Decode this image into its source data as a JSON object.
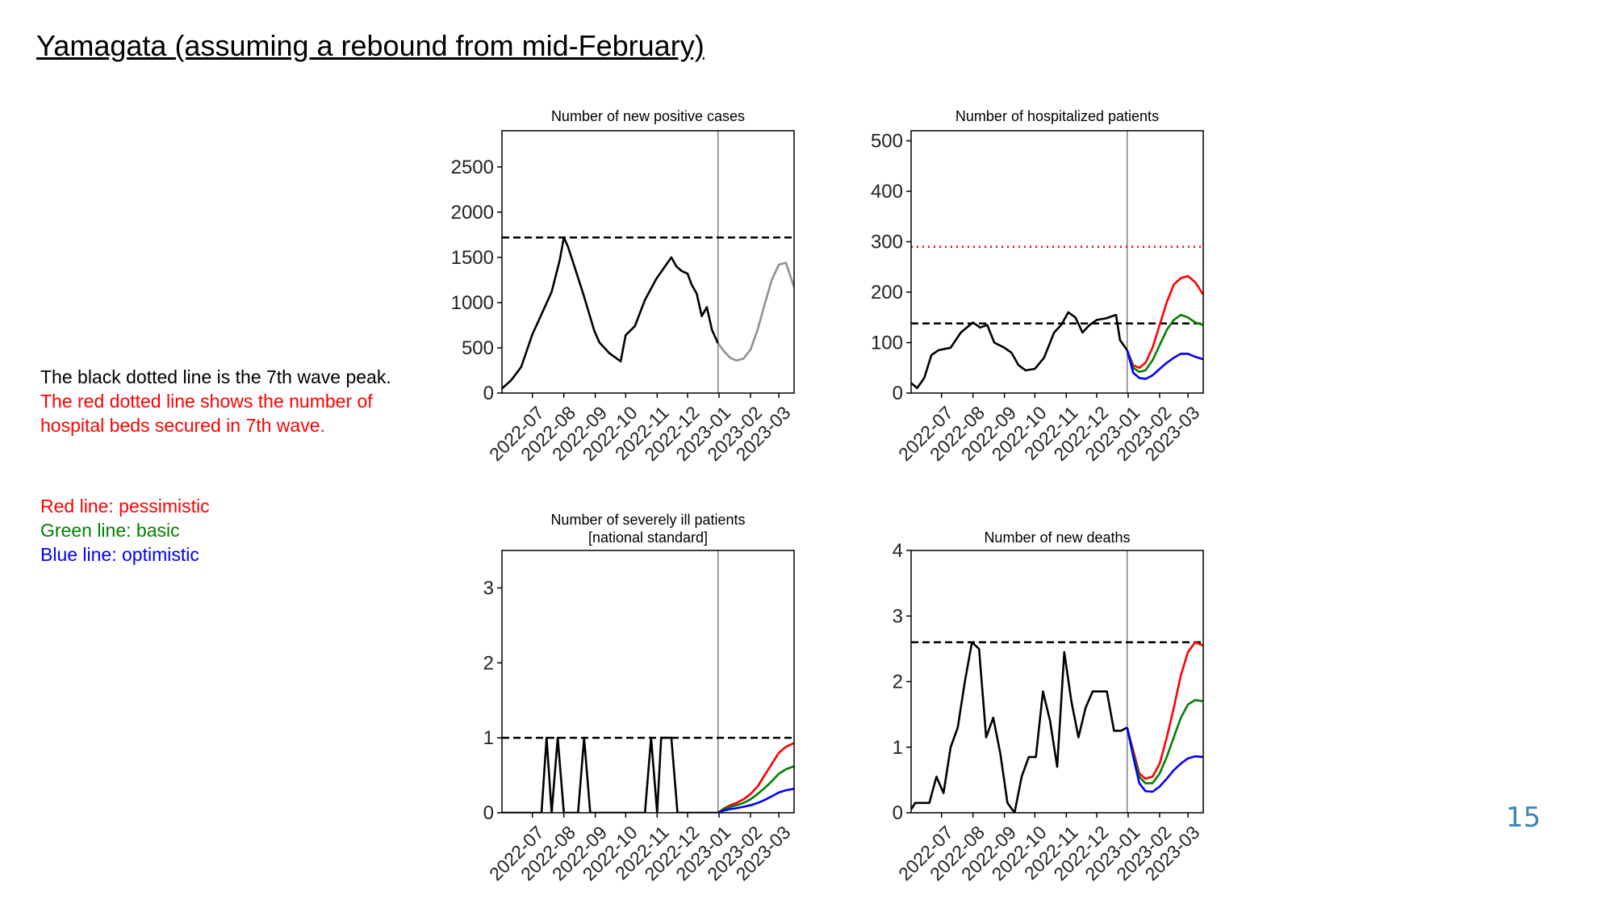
{
  "slide": {
    "title": "Yamagata (assuming a rebound from mid-February)",
    "page_number": "15"
  },
  "notes": {
    "black_line": "The black dotted line is the 7th wave peak.",
    "red_line_1": "The red dotted line shows the number of",
    "red_line_2": "hospital beds secured in 7th wave.",
    "pessimistic": "Red line: pessimistic",
    "basic": "Green line: basic",
    "optimistic": "Blue line: optimistic"
  },
  "colors": {
    "actual": "#000000",
    "projection": "#909090",
    "pessimistic": "#ff0000",
    "basic": "#008000",
    "optimistic": "#0000ff",
    "divider": "#808080",
    "note_red": "#ff0000",
    "note_green": "#008000",
    "note_blue": "#0000ff",
    "page_number": "#3a86b4"
  },
  "chart_data": [
    {
      "type": "line",
      "title": "Number of new positive cases",
      "xlim": [
        "2022-06-01",
        "2023-03-16"
      ],
      "ylim": [
        0,
        2900
      ],
      "yticks": [
        0,
        500,
        1000,
        1500,
        2000,
        2500
      ],
      "xticks": [
        "2022-07",
        "2022-08",
        "2022-09",
        "2022-10",
        "2022-11",
        "2022-12",
        "2023-01",
        "2023-02",
        "2023-03"
      ],
      "reference_lines": [
        {
          "label": "7th wave peak",
          "value": 1720,
          "style": "dashed",
          "color": "black"
        }
      ],
      "divider_date": "2022-12-31",
      "series": [
        {
          "role": "actual",
          "x": [
            "2022-06-01",
            "2022-06-10",
            "2022-06-20",
            "2022-07-01",
            "2022-07-10",
            "2022-07-20",
            "2022-07-28",
            "2022-08-01",
            "2022-08-05",
            "2022-08-10",
            "2022-08-20",
            "2022-08-31",
            "2022-09-05",
            "2022-09-10",
            "2022-09-15",
            "2022-09-20",
            "2022-09-26",
            "2022-10-01",
            "2022-10-10",
            "2022-10-20",
            "2022-10-31",
            "2022-11-10",
            "2022-11-15",
            "2022-11-20",
            "2022-11-25",
            "2022-12-01",
            "2022-12-05",
            "2022-12-10",
            "2022-12-15",
            "2022-12-20",
            "2022-12-25",
            "2022-12-31"
          ],
          "y": [
            50,
            140,
            290,
            650,
            870,
            1120,
            1470,
            1720,
            1620,
            1450,
            1100,
            690,
            560,
            500,
            440,
            400,
            350,
            640,
            740,
            1030,
            1260,
            1420,
            1500,
            1400,
            1350,
            1320,
            1200,
            1100,
            850,
            950,
            700,
            550
          ]
        },
        {
          "role": "projection",
          "x": [
            "2022-12-31",
            "2023-01-06",
            "2023-01-12",
            "2023-01-18",
            "2023-01-25",
            "2023-02-01",
            "2023-02-08",
            "2023-02-15",
            "2023-02-22",
            "2023-03-01",
            "2023-03-08",
            "2023-03-16"
          ],
          "y": [
            550,
            460,
            390,
            360,
            380,
            480,
            700,
            980,
            1250,
            1420,
            1440,
            1170
          ]
        }
      ]
    },
    {
      "type": "line",
      "title": "Number of hospitalized patients",
      "xlim": [
        "2022-06-01",
        "2023-03-16"
      ],
      "ylim": [
        0,
        520
      ],
      "yticks": [
        0,
        100,
        200,
        300,
        400,
        500
      ],
      "xticks": [
        "2022-07",
        "2022-08",
        "2022-09",
        "2022-10",
        "2022-11",
        "2022-12",
        "2023-01",
        "2023-02",
        "2023-03"
      ],
      "reference_lines": [
        {
          "label": "7th wave peak",
          "value": 138,
          "style": "dashed",
          "color": "black"
        },
        {
          "label": "hospital beds secured in 7th wave",
          "value": 290,
          "style": "dotted",
          "color": "red"
        }
      ],
      "divider_date": "2022-12-31",
      "series": [
        {
          "role": "actual",
          "x": [
            "2022-06-01",
            "2022-06-07",
            "2022-06-14",
            "2022-06-21",
            "2022-06-28",
            "2022-07-10",
            "2022-07-20",
            "2022-08-01",
            "2022-08-08",
            "2022-08-15",
            "2022-08-22",
            "2022-09-01",
            "2022-09-08",
            "2022-09-15",
            "2022-09-22",
            "2022-10-01",
            "2022-10-10",
            "2022-10-20",
            "2022-10-27",
            "2022-11-03",
            "2022-11-10",
            "2022-11-17",
            "2022-11-24",
            "2022-12-01",
            "2022-12-10",
            "2022-12-20",
            "2022-12-24",
            "2022-12-31"
          ],
          "y": [
            20,
            10,
            30,
            75,
            85,
            90,
            120,
            140,
            130,
            135,
            100,
            90,
            80,
            55,
            45,
            48,
            70,
            120,
            135,
            160,
            150,
            120,
            135,
            145,
            148,
            155,
            105,
            85
          ]
        },
        {
          "role": "pessimistic",
          "x": [
            "2022-12-31",
            "2023-01-06",
            "2023-01-12",
            "2023-01-18",
            "2023-01-25",
            "2023-02-01",
            "2023-02-08",
            "2023-02-15",
            "2023-02-22",
            "2023-03-01",
            "2023-03-08",
            "2023-03-16"
          ],
          "y": [
            85,
            55,
            50,
            60,
            90,
            135,
            180,
            215,
            228,
            232,
            220,
            195
          ]
        },
        {
          "role": "basic",
          "x": [
            "2022-12-31",
            "2023-01-06",
            "2023-01-12",
            "2023-01-18",
            "2023-01-25",
            "2023-02-01",
            "2023-02-08",
            "2023-02-15",
            "2023-02-22",
            "2023-03-01",
            "2023-03-08",
            "2023-03-16"
          ],
          "y": [
            85,
            50,
            42,
            45,
            65,
            95,
            125,
            145,
            155,
            150,
            140,
            135
          ]
        },
        {
          "role": "optimistic",
          "x": [
            "2022-12-31",
            "2023-01-06",
            "2023-01-12",
            "2023-01-18",
            "2023-01-25",
            "2023-02-01",
            "2023-02-08",
            "2023-02-15",
            "2023-02-22",
            "2023-03-01",
            "2023-03-08",
            "2023-03-16"
          ],
          "y": [
            85,
            40,
            30,
            28,
            35,
            48,
            60,
            70,
            78,
            78,
            72,
            67
          ]
        }
      ]
    },
    {
      "type": "line",
      "title": "Number of severely ill patients",
      "subtitle": "[national standard]",
      "xlim": [
        "2022-06-01",
        "2023-03-16"
      ],
      "ylim": [
        0,
        3.5
      ],
      "yticks": [
        0,
        1,
        2,
        3
      ],
      "xticks": [
        "2022-07",
        "2022-08",
        "2022-09",
        "2022-10",
        "2022-11",
        "2022-12",
        "2023-01",
        "2023-02",
        "2023-03"
      ],
      "reference_lines": [
        {
          "label": "7th wave peak",
          "value": 1,
          "style": "dashed",
          "color": "black"
        }
      ],
      "divider_date": "2022-12-31",
      "series": [
        {
          "role": "actual",
          "x": [
            "2022-06-01",
            "2022-07-10",
            "2022-07-15",
            "2022-07-20",
            "2022-07-26",
            "2022-08-01",
            "2022-08-15",
            "2022-08-21",
            "2022-08-27",
            "2022-10-20",
            "2022-10-26",
            "2022-11-01",
            "2022-11-05",
            "2022-11-15",
            "2022-11-21",
            "2022-12-31"
          ],
          "y": [
            0,
            0,
            1,
            0,
            1,
            0,
            0,
            1,
            0,
            0,
            1,
            0,
            1,
            1,
            0,
            0
          ]
        },
        {
          "role": "pessimistic",
          "x": [
            "2022-12-31",
            "2023-01-06",
            "2023-01-12",
            "2023-01-18",
            "2023-01-25",
            "2023-02-01",
            "2023-02-08",
            "2023-02-15",
            "2023-02-22",
            "2023-03-01",
            "2023-03-08",
            "2023-03-16"
          ],
          "y": [
            0,
            0.06,
            0.1,
            0.13,
            0.18,
            0.25,
            0.35,
            0.5,
            0.65,
            0.8,
            0.88,
            0.93
          ]
        },
        {
          "role": "basic",
          "x": [
            "2022-12-31",
            "2023-01-06",
            "2023-01-12",
            "2023-01-18",
            "2023-01-25",
            "2023-02-01",
            "2023-02-08",
            "2023-02-15",
            "2023-02-22",
            "2023-03-01",
            "2023-03-08",
            "2023-03-16"
          ],
          "y": [
            0,
            0.05,
            0.08,
            0.1,
            0.13,
            0.18,
            0.25,
            0.33,
            0.42,
            0.52,
            0.58,
            0.62
          ]
        },
        {
          "role": "optimistic",
          "x": [
            "2022-12-31",
            "2023-01-06",
            "2023-01-12",
            "2023-01-18",
            "2023-01-25",
            "2023-02-01",
            "2023-02-08",
            "2023-02-15",
            "2023-02-22",
            "2023-03-01",
            "2023-03-08",
            "2023-03-16"
          ],
          "y": [
            0,
            0.03,
            0.05,
            0.06,
            0.08,
            0.1,
            0.13,
            0.17,
            0.22,
            0.27,
            0.3,
            0.32
          ]
        }
      ]
    },
    {
      "type": "line",
      "title": "Number of new deaths",
      "xlim": [
        "2022-06-01",
        "2023-03-16"
      ],
      "ylim": [
        0,
        4
      ],
      "yticks": [
        0,
        1,
        2,
        3,
        4
      ],
      "xticks": [
        "2022-07",
        "2022-08",
        "2022-09",
        "2022-10",
        "2022-11",
        "2022-12",
        "2023-01",
        "2023-02",
        "2023-03"
      ],
      "reference_lines": [
        {
          "label": "7th wave peak",
          "value": 2.6,
          "style": "dashed",
          "color": "black"
        }
      ],
      "divider_date": "2022-12-31",
      "series": [
        {
          "role": "actual",
          "x": [
            "2022-06-01",
            "2022-06-05",
            "2022-06-19",
            "2022-06-26",
            "2022-07-03",
            "2022-07-10",
            "2022-07-17",
            "2022-07-24",
            "2022-07-31",
            "2022-08-07",
            "2022-08-14",
            "2022-08-21",
            "2022-08-28",
            "2022-09-04",
            "2022-09-11",
            "2022-09-18",
            "2022-09-25",
            "2022-10-02",
            "2022-10-09",
            "2022-10-16",
            "2022-10-23",
            "2022-10-30",
            "2022-11-06",
            "2022-11-13",
            "2022-11-20",
            "2022-11-27",
            "2022-12-04",
            "2022-12-11",
            "2022-12-18",
            "2022-12-25",
            "2022-12-31"
          ],
          "y": [
            0.05,
            0.15,
            0.15,
            0.55,
            0.3,
            1.0,
            1.3,
            2.0,
            2.6,
            2.5,
            1.15,
            1.45,
            0.9,
            0.15,
            0.0,
            0.55,
            0.85,
            0.85,
            1.85,
            1.4,
            0.7,
            2.45,
            1.7,
            1.15,
            1.6,
            1.85,
            1.85,
            1.85,
            1.25,
            1.25,
            1.3
          ]
        },
        {
          "role": "pessimistic",
          "x": [
            "2022-12-31",
            "2023-01-06",
            "2023-01-12",
            "2023-01-18",
            "2023-01-25",
            "2023-02-01",
            "2023-02-08",
            "2023-02-15",
            "2023-02-22",
            "2023-03-01",
            "2023-03-08",
            "2023-03-16"
          ],
          "y": [
            1.3,
            0.95,
            0.6,
            0.52,
            0.55,
            0.75,
            1.15,
            1.6,
            2.1,
            2.45,
            2.6,
            2.55
          ]
        },
        {
          "role": "basic",
          "x": [
            "2022-12-31",
            "2023-01-06",
            "2023-01-12",
            "2023-01-18",
            "2023-01-25",
            "2023-02-01",
            "2023-02-08",
            "2023-02-15",
            "2023-02-22",
            "2023-03-01",
            "2023-03-08",
            "2023-03-16"
          ],
          "y": [
            1.3,
            0.9,
            0.55,
            0.45,
            0.45,
            0.6,
            0.85,
            1.15,
            1.45,
            1.65,
            1.72,
            1.7
          ]
        },
        {
          "role": "optimistic",
          "x": [
            "2022-12-31",
            "2023-01-06",
            "2023-01-12",
            "2023-01-18",
            "2023-01-25",
            "2023-02-01",
            "2023-02-08",
            "2023-02-15",
            "2023-02-22",
            "2023-03-01",
            "2023-03-08",
            "2023-03-16"
          ],
          "y": [
            1.3,
            0.85,
            0.45,
            0.33,
            0.32,
            0.4,
            0.52,
            0.65,
            0.75,
            0.83,
            0.86,
            0.85
          ]
        }
      ]
    }
  ]
}
